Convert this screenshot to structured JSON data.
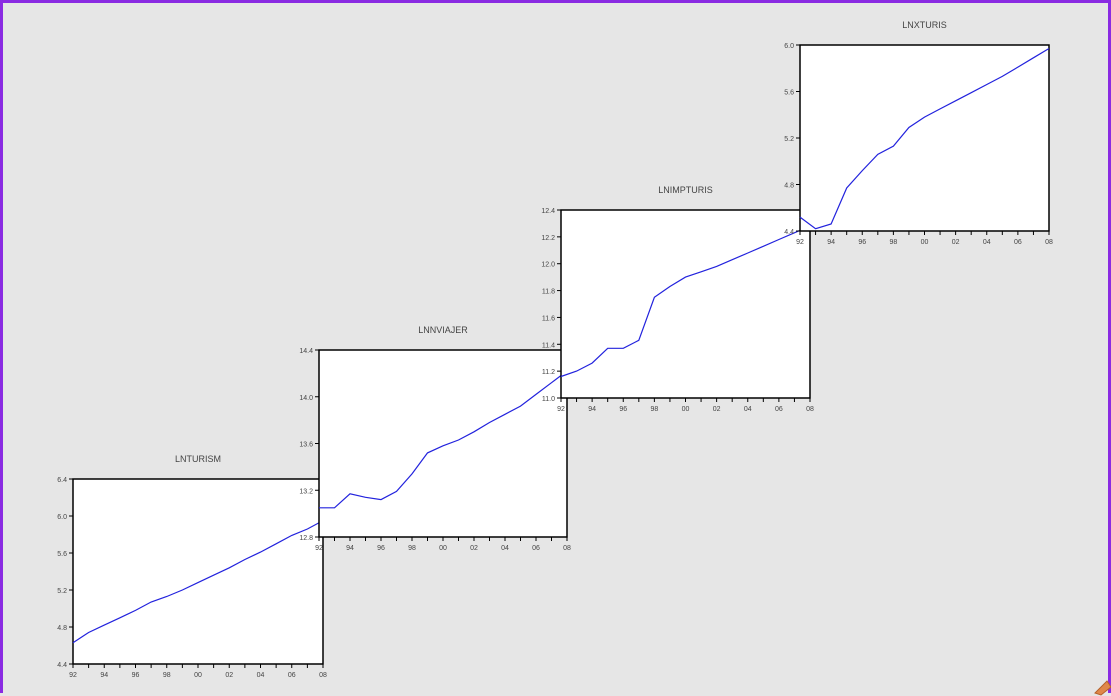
{
  "chart_data": [
    {
      "type": "line",
      "title": "LNTURISM",
      "x_tick_labels": [
        "92",
        "94",
        "96",
        "98",
        "00",
        "02",
        "04",
        "06",
        "08"
      ],
      "y_tick_labels": [
        "4.4",
        "4.8",
        "5.2",
        "5.6",
        "6.0",
        "6.4"
      ],
      "xlim": [
        1992,
        2008
      ],
      "ylim": [
        4.4,
        6.4
      ],
      "x": [
        1992,
        1993,
        1994,
        1995,
        1996,
        1997,
        1998,
        1999,
        2000,
        2001,
        2002,
        2003,
        2004,
        2005,
        2006,
        2007,
        2008
      ],
      "y": [
        4.63,
        4.74,
        4.82,
        4.9,
        4.98,
        5.07,
        5.13,
        5.2,
        5.28,
        5.36,
        5.44,
        5.53,
        5.61,
        5.7,
        5.79,
        5.86,
        5.95
      ],
      "color": "#2222dd"
    },
    {
      "type": "line",
      "title": "LNNVIAJER",
      "x_tick_labels": [
        "92",
        "94",
        "96",
        "98",
        "00",
        "02",
        "04",
        "06",
        "08"
      ],
      "y_tick_labels": [
        "12.8",
        "13.2",
        "13.6",
        "14.0",
        "14.4"
      ],
      "xlim": [
        1992,
        2008
      ],
      "ylim": [
        12.8,
        14.4
      ],
      "x": [
        1992,
        1993,
        1994,
        1995,
        1996,
        1997,
        1998,
        1999,
        2000,
        2001,
        2002,
        2003,
        2004,
        2005,
        2006,
        2007,
        2008
      ],
      "y": [
        13.05,
        13.05,
        13.17,
        13.14,
        13.12,
        13.19,
        13.34,
        13.52,
        13.58,
        13.63,
        13.7,
        13.78,
        13.85,
        13.92,
        14.02,
        14.12,
        14.22
      ],
      "color": "#2222dd"
    },
    {
      "type": "line",
      "title": "LNIMPTURIS",
      "x_tick_labels": [
        "92",
        "94",
        "96",
        "98",
        "00",
        "02",
        "04",
        "06",
        "08"
      ],
      "y_tick_labels": [
        "11.0",
        "11.2",
        "11.4",
        "11.6",
        "11.8",
        "12.0",
        "12.2",
        "12.4"
      ],
      "xlim": [
        1992,
        2008
      ],
      "ylim": [
        11.0,
        12.4
      ],
      "x": [
        1992,
        1993,
        1994,
        1995,
        1996,
        1997,
        1998,
        1999,
        2000,
        2001,
        2002,
        2003,
        2004,
        2005,
        2006,
        2007,
        2008
      ],
      "y": [
        11.16,
        11.2,
        11.26,
        11.37,
        11.37,
        11.43,
        11.75,
        11.83,
        11.9,
        11.94,
        11.98,
        12.03,
        12.08,
        12.13,
        12.18,
        12.23,
        12.28
      ],
      "color": "#2222dd"
    },
    {
      "type": "line",
      "title": "LNXTURIS",
      "x_tick_labels": [
        "92",
        "94",
        "96",
        "98",
        "00",
        "02",
        "04",
        "06",
        "08"
      ],
      "y_tick_labels": [
        "4.4",
        "4.8",
        "5.2",
        "5.6",
        "6.0"
      ],
      "xlim": [
        1992,
        2008
      ],
      "ylim": [
        4.4,
        6.0
      ],
      "x": [
        1992,
        1993,
        1994,
        1995,
        1996,
        1997,
        1998,
        1999,
        2000,
        2001,
        2002,
        2003,
        2004,
        2005,
        2006,
        2007,
        2008
      ],
      "y": [
        4.52,
        4.42,
        4.46,
        4.77,
        4.92,
        5.06,
        5.13,
        5.29,
        5.38,
        5.45,
        5.52,
        5.59,
        5.66,
        5.73,
        5.81,
        5.89,
        5.97
      ],
      "color": "#2222dd"
    }
  ]
}
